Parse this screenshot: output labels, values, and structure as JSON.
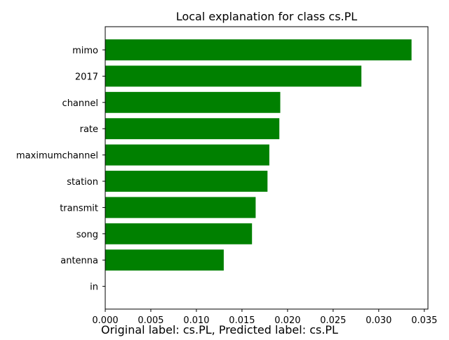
{
  "chart_data": {
    "type": "bar",
    "orientation": "horizontal",
    "title": "Local explanation for class cs.PL",
    "xlabel": "Original label: cs.PL, Predicted label: cs.PL",
    "ylabel": "",
    "categories": [
      "mimo",
      "2017",
      "channel",
      "rate",
      "maximumchannel",
      "station",
      "transmit",
      "song",
      "antenna",
      "in"
    ],
    "values": [
      0.0336,
      0.0281,
      0.0192,
      0.0191,
      0.018,
      0.0178,
      0.0165,
      0.0161,
      0.013,
      0.0
    ],
    "xlim": [
      0,
      0.0354
    ],
    "xticks": [
      0.0,
      0.005,
      0.01,
      0.015,
      0.02,
      0.025,
      0.03,
      0.035
    ],
    "xtick_labels": [
      "0.000",
      "0.005",
      "0.010",
      "0.015",
      "0.020",
      "0.025",
      "0.030",
      "0.035"
    ],
    "bar_color": "#008000",
    "grid": false,
    "legend": "none"
  }
}
